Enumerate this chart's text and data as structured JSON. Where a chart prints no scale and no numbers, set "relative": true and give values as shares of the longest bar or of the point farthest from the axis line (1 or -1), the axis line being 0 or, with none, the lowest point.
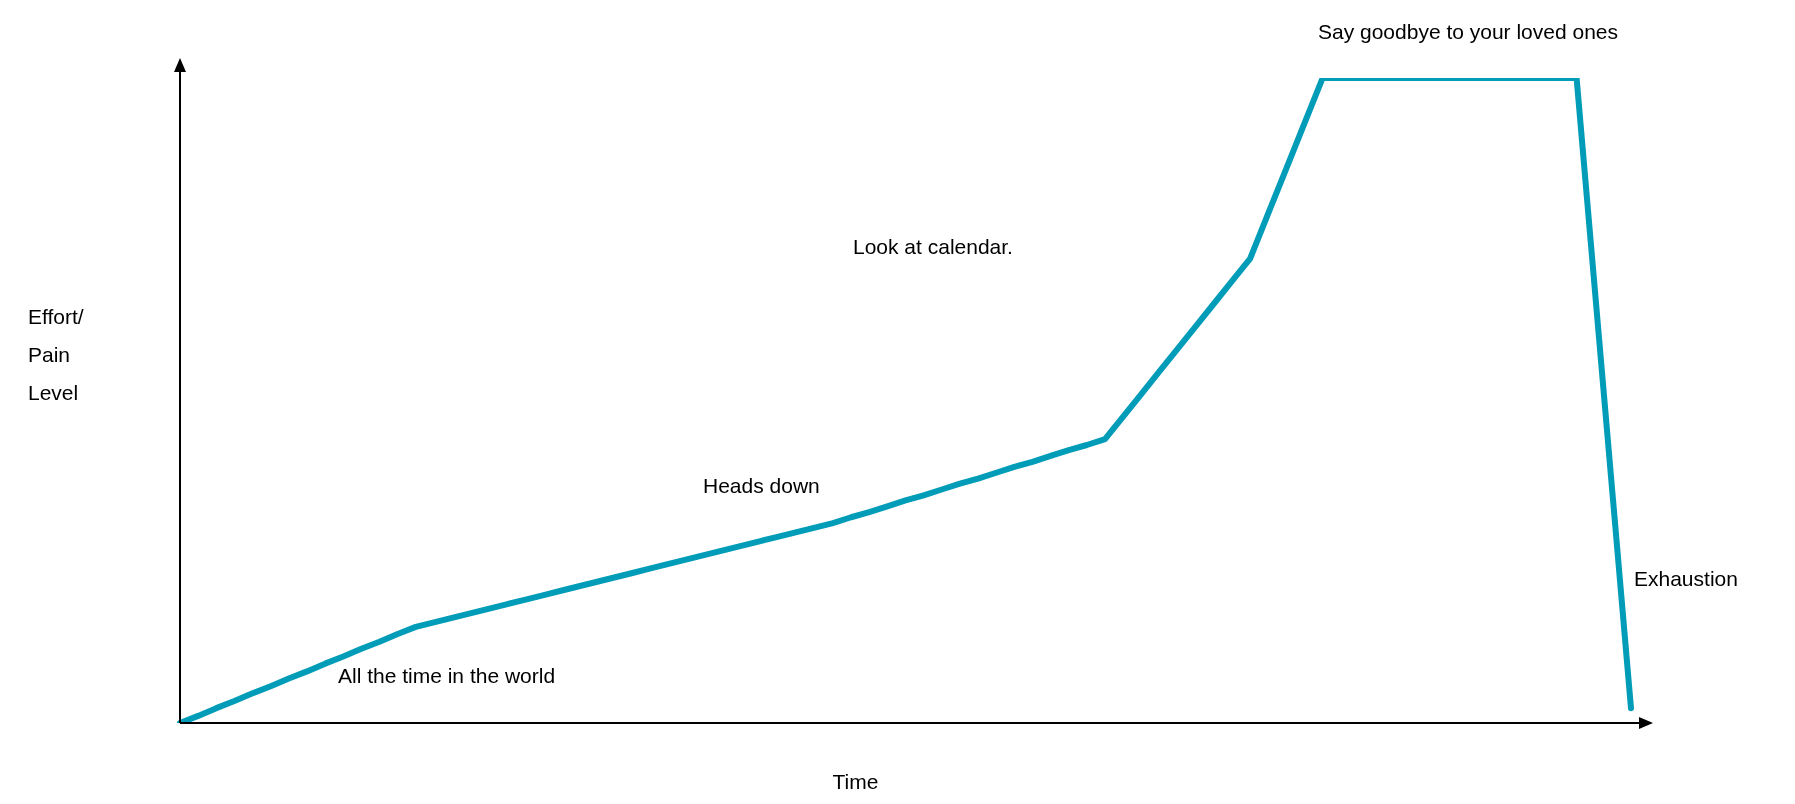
{
  "chart_data": {
    "type": "line",
    "relative": true,
    "xlabel": "Time",
    "ylabel": "Effort/ Pain Level",
    "categories": [
      null,
      null,
      null,
      null,
      null,
      null,
      null,
      null,
      null,
      null,
      null,
      null,
      null,
      null,
      null,
      null,
      null,
      null,
      null,
      null,
      null,
      null,
      null,
      null,
      null,
      null,
      null,
      null,
      null,
      null,
      null,
      null,
      null,
      null,
      null,
      null,
      null,
      null,
      null,
      null,
      null,
      null,
      null,
      null,
      null,
      null,
      null,
      null,
      null,
      null,
      null,
      null,
      null,
      null,
      null,
      null,
      null,
      null,
      null,
      null,
      null,
      null,
      null,
      null,
      null,
      null,
      null,
      null,
      null,
      null,
      null,
      null,
      null,
      null,
      null,
      null,
      null,
      null,
      null,
      null,
      null
    ],
    "series": [
      {
        "color": "#009cb8",
        "values": [
          0,
          0.011,
          0.023,
          0.034,
          0.046,
          0.057,
          0.069,
          0.08,
          0.092,
          0.103,
          0.115,
          0.126,
          0.138,
          0.149,
          0.156,
          0.163,
          0.17,
          0.177,
          0.184,
          0.191,
          0.198,
          0.205,
          0.212,
          0.219,
          0.226,
          0.233,
          0.24,
          0.247,
          0.254,
          0.261,
          0.268,
          0.275,
          0.282,
          0.289,
          0.296,
          0.303,
          0.31,
          0.319,
          0.327,
          0.336,
          0.345,
          0.353,
          0.362,
          0.371,
          0.379,
          0.388,
          0.397,
          0.405,
          0.414,
          0.423,
          0.431,
          0.44,
          0.475,
          0.51,
          0.545,
          0.58,
          0.615,
          0.65,
          0.685,
          0.72,
          0.79,
          0.86,
          0.93,
          1,
          1,
          1,
          1,
          1,
          1,
          1,
          1,
          1,
          1,
          1,
          1,
          1,
          1,
          1,
          0.674,
          0.349,
          0.023
        ]
      }
    ],
    "annotations": [
      "Say goodbye to your loved ones",
      "Look at calendar.",
      "Heads down",
      "All the time in the world",
      "Exhaustion"
    ],
    "legend": false,
    "marker": "none",
    "line_style": "solid"
  }
}
